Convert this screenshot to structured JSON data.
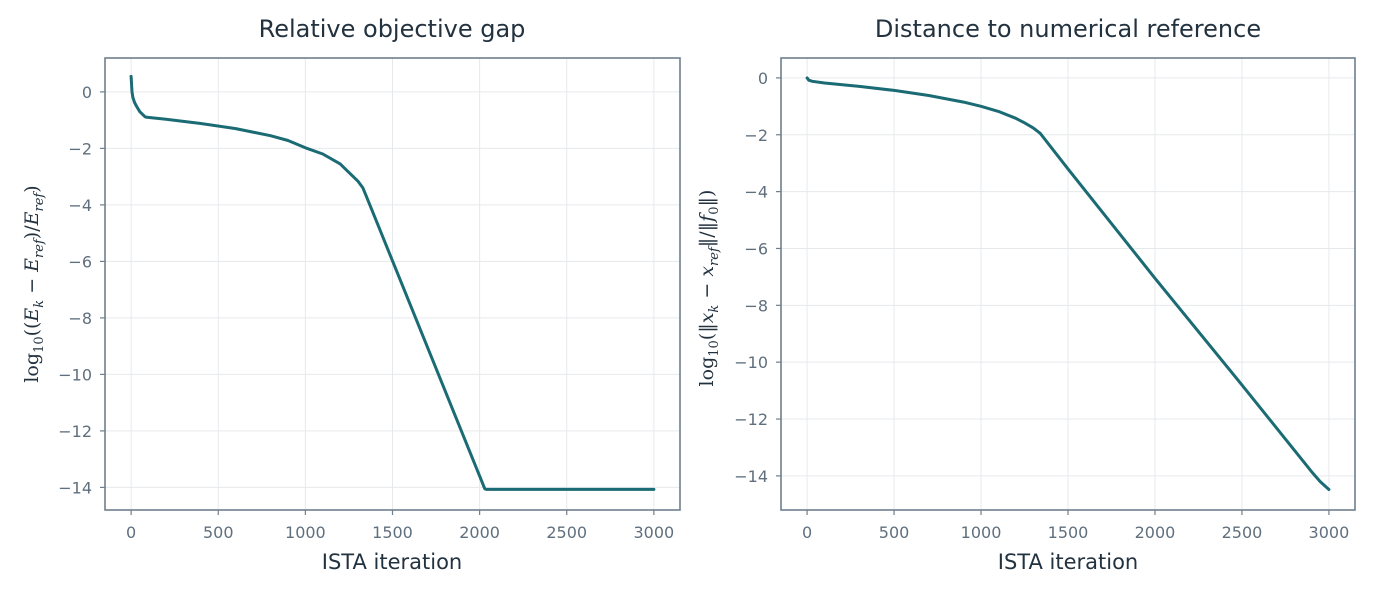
{
  "chart_data": [
    {
      "type": "line",
      "title": "Relative objective gap",
      "xlabel": "ISTA iteration",
      "ylabel": "log10((E_k − E_ref)/E_ref)",
      "xlim": [
        -150,
        3150
      ],
      "ylim": [
        -14.8,
        1.2
      ],
      "xticks": [
        0,
        500,
        1000,
        1500,
        2000,
        2500,
        3000
      ],
      "yticks": [
        0,
        -2,
        -4,
        -6,
        -8,
        -10,
        -12,
        -14
      ],
      "grid": true,
      "color": "#1b6b74",
      "series": [
        {
          "x": [
            0,
            5,
            10,
            20,
            30,
            50,
            80,
            90,
            200,
            400,
            600,
            800,
            900,
            1000,
            1100,
            1200,
            1250,
            1300,
            1330,
            1350,
            2030,
            2040,
            3000
          ],
          "y": [
            0.55,
            0.0,
            -0.2,
            -0.38,
            -0.5,
            -0.7,
            -0.88,
            -0.9,
            -0.97,
            -1.12,
            -1.3,
            -1.55,
            -1.72,
            -1.98,
            -2.2,
            -2.55,
            -2.85,
            -3.15,
            -3.4,
            -3.7,
            -14.05,
            -14.07,
            -14.07
          ]
        }
      ]
    },
    {
      "type": "line",
      "title": "Distance to numerical reference",
      "xlabel": "ISTA iteration",
      "ylabel": "log10(‖x_k − x_ref‖/‖f_0‖)",
      "xlim": [
        -150,
        3150
      ],
      "ylim": [
        -15.2,
        0.7
      ],
      "xticks": [
        0,
        500,
        1000,
        1500,
        2000,
        2500,
        3000
      ],
      "yticks": [
        0,
        -2,
        -4,
        -6,
        -8,
        -10,
        -12,
        -14
      ],
      "grid": true,
      "color": "#1b6b74",
      "series": [
        {
          "x": [
            0,
            10,
            30,
            100,
            300,
            500,
            700,
            900,
            1000,
            1100,
            1200,
            1250,
            1300,
            1340,
            1500,
            2000,
            2500,
            2900,
            2950,
            3000
          ],
          "y": [
            0.0,
            -0.08,
            -0.12,
            -0.18,
            -0.3,
            -0.44,
            -0.62,
            -0.85,
            -1.0,
            -1.18,
            -1.42,
            -1.58,
            -1.76,
            -1.95,
            -3.2,
            -7.05,
            -10.8,
            -13.85,
            -14.2,
            -14.48
          ]
        }
      ]
    }
  ]
}
